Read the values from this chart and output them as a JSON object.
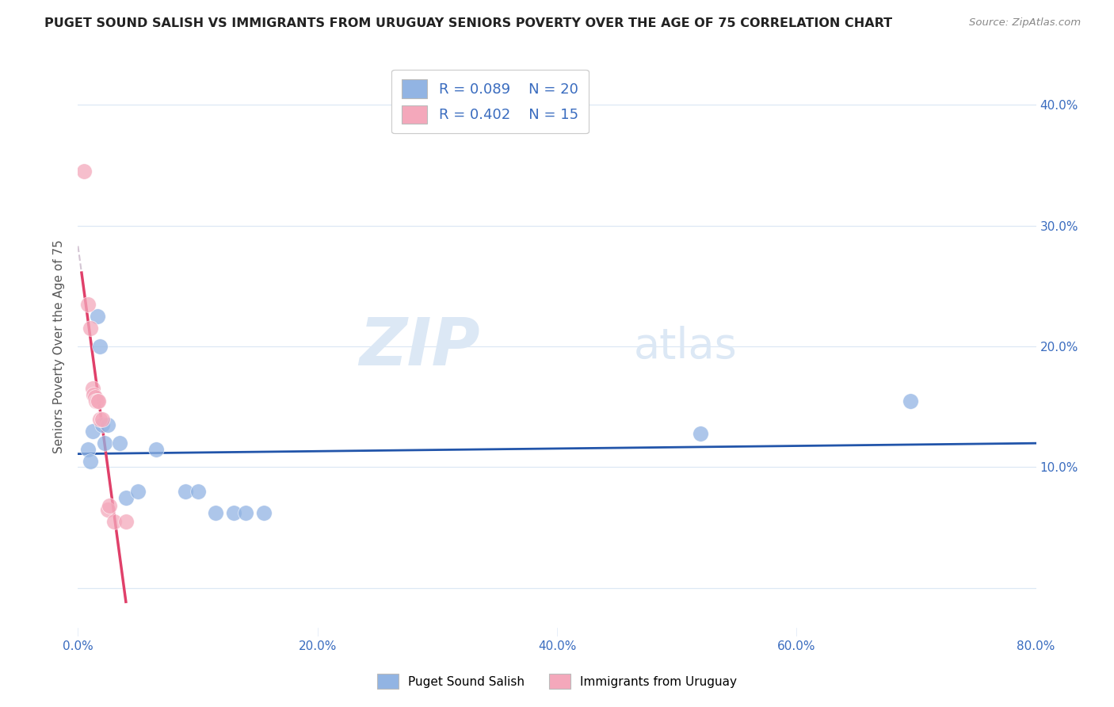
{
  "title": "PUGET SOUND SALISH VS IMMIGRANTS FROM URUGUAY SENIORS POVERTY OVER THE AGE OF 75 CORRELATION CHART",
  "source": "Source: ZipAtlas.com",
  "ylabel": "Seniors Poverty Over the Age of 75",
  "legend1_label": "Puget Sound Salish",
  "legend2_label": "Immigrants from Uruguay",
  "R1": 0.089,
  "N1": 20,
  "R2": 0.402,
  "N2": 15,
  "color1": "#92b4e3",
  "color2": "#f4a8bb",
  "trendline1_color": "#2255aa",
  "trendline2_color": "#e0406a",
  "trendline_dashed_color": "#ccbbcc",
  "watermark_zip": "ZIP",
  "watermark_atlas": "atlas",
  "xlim": [
    0.0,
    0.8
  ],
  "ylim": [
    -0.04,
    0.44
  ],
  "xticks": [
    0.0,
    0.2,
    0.4,
    0.6,
    0.8
  ],
  "xtick_labels": [
    "0.0%",
    "20.0%",
    "40.0%",
    "60.0%",
    "80.0%"
  ],
  "yticks": [
    0.0,
    0.1,
    0.2,
    0.3,
    0.4
  ],
  "ytick_labels_right": [
    "",
    "10.0%",
    "20.0%",
    "30.0%",
    "40.0%"
  ],
  "blue_scatter": [
    [
      0.008,
      0.115
    ],
    [
      0.01,
      0.105
    ],
    [
      0.012,
      0.13
    ],
    [
      0.016,
      0.225
    ],
    [
      0.018,
      0.2
    ],
    [
      0.02,
      0.135
    ],
    [
      0.022,
      0.12
    ],
    [
      0.025,
      0.135
    ],
    [
      0.035,
      0.12
    ],
    [
      0.04,
      0.075
    ],
    [
      0.05,
      0.08
    ],
    [
      0.065,
      0.115
    ],
    [
      0.09,
      0.08
    ],
    [
      0.1,
      0.08
    ],
    [
      0.115,
      0.062
    ],
    [
      0.13,
      0.062
    ],
    [
      0.14,
      0.062
    ],
    [
      0.155,
      0.062
    ],
    [
      0.52,
      0.128
    ],
    [
      0.695,
      0.155
    ]
  ],
  "pink_scatter": [
    [
      0.005,
      0.345
    ],
    [
      0.008,
      0.235
    ],
    [
      0.01,
      0.215
    ],
    [
      0.012,
      0.165
    ],
    [
      0.013,
      0.16
    ],
    [
      0.014,
      0.158
    ],
    [
      0.015,
      0.155
    ],
    [
      0.016,
      0.155
    ],
    [
      0.017,
      0.155
    ],
    [
      0.018,
      0.14
    ],
    [
      0.02,
      0.14
    ],
    [
      0.025,
      0.065
    ],
    [
      0.026,
      0.068
    ],
    [
      0.03,
      0.055
    ],
    [
      0.04,
      0.055
    ]
  ],
  "title_color": "#222222",
  "title_fontsize": 11.5,
  "source_fontsize": 9.5,
  "axis_label_color": "#555555",
  "tick_color": "#3a6cbf",
  "watermark_color": "#dce8f5",
  "watermark_fontsize": 60,
  "grid_color": "#dde8f5",
  "background_color": "#ffffff",
  "legend_box_color": "#ffffff",
  "legend_border_color": "#cccccc"
}
